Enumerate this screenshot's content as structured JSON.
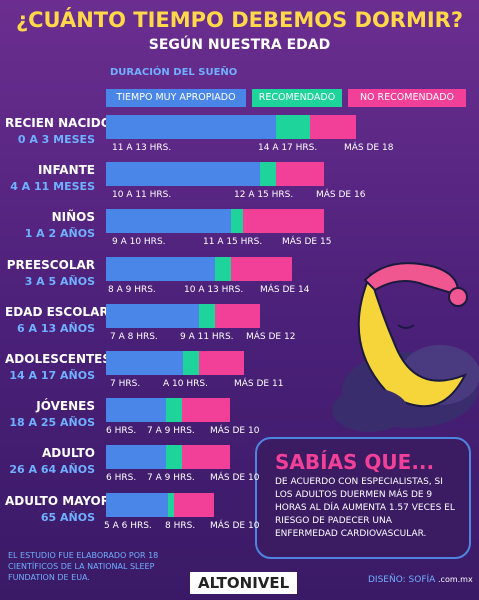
{
  "header": {
    "title": "¿CUÁNTO TIEMPO DEBEMOS DORMIR?",
    "subtitle": "SEGÚN NUESTRA EDAD"
  },
  "legend": {
    "title": "DURACIÓN DEL SUEÑO",
    "items": [
      "TIEMPO MUY APROPIADO",
      "RECOMENDADO",
      "NO RECOMENDADO"
    ]
  },
  "rows": [
    {
      "group": "RECIEN NACIDO",
      "age": "0 A 3 MESES",
      "labels": [
        "11 A 13 HRS.",
        "14 A 17 HRS.",
        "MÁS DE 18"
      ]
    },
    {
      "group": "INFANTE",
      "age": "4 A 11 MESES",
      "labels": [
        "10 A 11 HRS.",
        "12 A 15 HRS.",
        "MÁS DE 16"
      ]
    },
    {
      "group": "NIÑOS",
      "age": "1 A 2 AÑOS",
      "labels": [
        "9 A 10 HRS.",
        "11 A 15 HRS.",
        "MÁS DE 15"
      ]
    },
    {
      "group": "PREESCOLAR",
      "age": "3 A 5 AÑOS",
      "labels": [
        "8 A 9 HRS.",
        "10 A 13 HRS.",
        "MÁS DE 14"
      ]
    },
    {
      "group": "EDAD ESCOLAR",
      "age": "6 A 13 AÑOS",
      "labels": [
        "7 A 8 HRS.",
        "9 A 11 HRS.",
        "MÁS DE 12"
      ]
    },
    {
      "group": "ADOLESCENTES",
      "age": "14 A 17 AÑOS",
      "labels": [
        "7 HRS.",
        "A 10 HRS.",
        "MÁS DE 11"
      ]
    },
    {
      "group": "JÓVENES",
      "age": "18 A 25 AÑOS",
      "labels": [
        "6 HRS.",
        "7 A 9 HRS.",
        "MÁS DE 10"
      ]
    },
    {
      "group": "ADULTO",
      "age": "26 A 64 AÑOS",
      "labels": [
        "6 HRS.",
        "7 A 9 HRS.",
        "MÁS DE 10"
      ]
    },
    {
      "group": "ADULTO MAYOR",
      "age": "65 AÑOS",
      "labels": [
        "5 A 6 HRS.",
        "8 HRS.",
        "MÁS DE 10"
      ]
    }
  ],
  "callout": {
    "title": "SABÍAS QUE...",
    "text": "DE ACUERDO CON ESPECIALISTAS, SI LOS ADULTOS DUERMEN MÁS DE 9 HORAS AL DÍA AUMENTA 1.57 VECES EL RIESGO DE PADECER UNA ENFERMEDAD CARDIOVASCULAR."
  },
  "footer": {
    "note": "EL ESTUDIO FUE ELABORADO POR 18 CIENTÍFICOS DE LA NATIONAL SLEEP FUNDATION DE EUA.",
    "brand": "ALTONIVEL",
    "credit": "DISEÑO: SOFÍA",
    "domain": ".com.mx"
  }
}
